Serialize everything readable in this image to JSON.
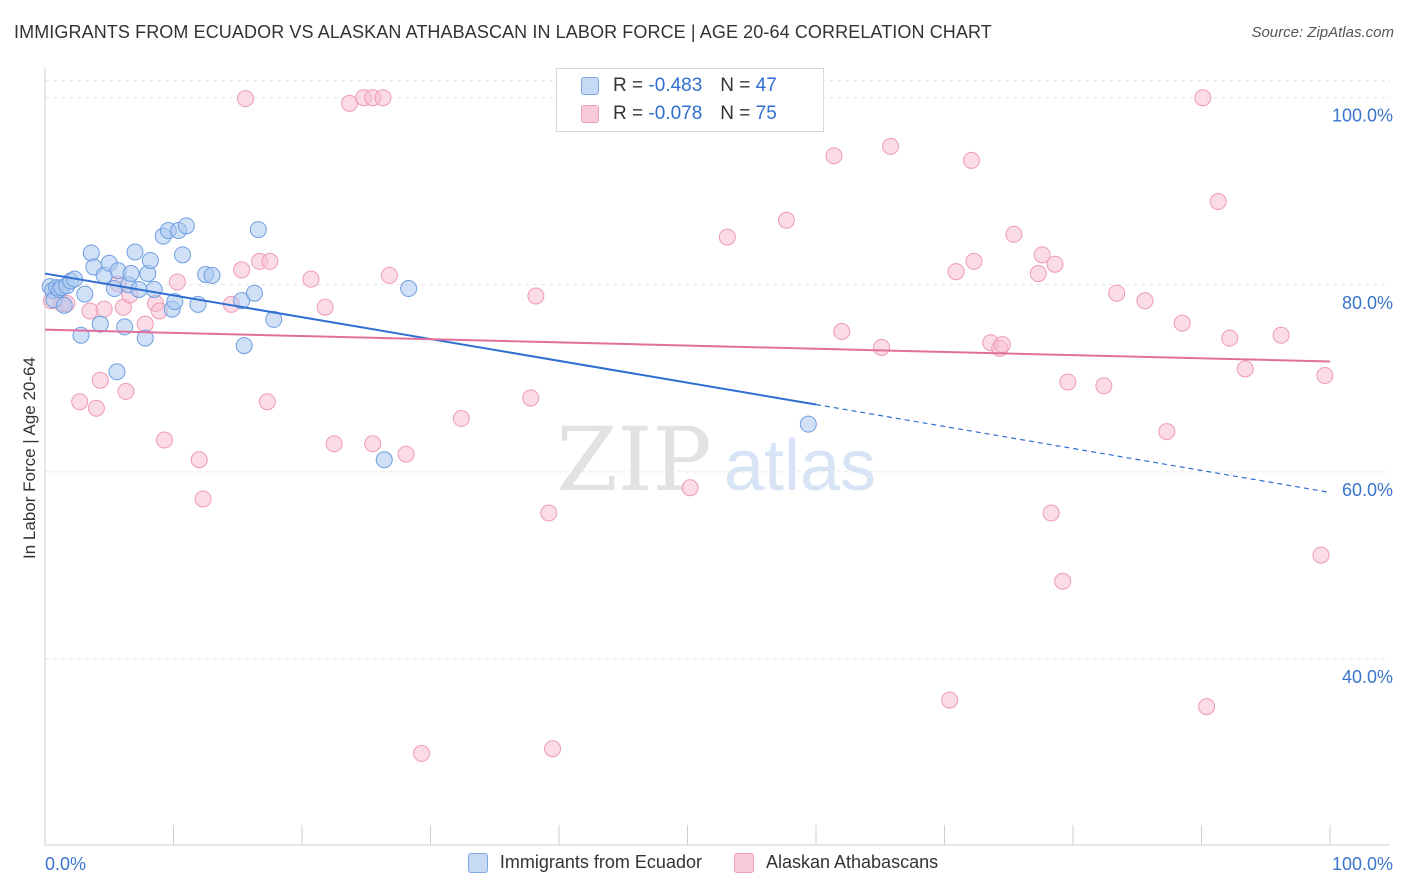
{
  "title": "IMMIGRANTS FROM ECUADOR VS ALASKAN ATHABASCAN IN LABOR FORCE | AGE 20-64 CORRELATION CHART",
  "source": "Source: ZipAtlas.com",
  "watermark": {
    "zip": "ZIP",
    "atlas": "atlas"
  },
  "legend": {
    "rows": [
      {
        "r_label": "R =",
        "r_value": "-0.483",
        "n_label": "N =",
        "n_value": "47"
      },
      {
        "r_label": "R =",
        "r_value": "-0.078",
        "n_label": "N =",
        "n_value": "75"
      }
    ]
  },
  "colors": {
    "blue_fill": "#a9c8f0",
    "blue_stroke": "#6f9ee0",
    "blue_line": "#2f6fd0",
    "pink_fill": "#f7bfd2",
    "pink_stroke": "#ee9ab6",
    "pink_line": "#e0709a",
    "tick_text": "#3a74cc",
    "grid": "#e3e3e3"
  },
  "chart_data": {
    "type": "scatter",
    "title": "IMMIGRANTS FROM ECUADOR VS ALASKAN ATHABASCAN IN LABOR FORCE | AGE 20-64 CORRELATION CHART",
    "xlabel": "",
    "ylabel": "In Labor Force | Age 20-64",
    "xlim": [
      0,
      100
    ],
    "ylim": [
      20,
      102
    ],
    "x_tick_labels": [
      "0.0%",
      "100.0%"
    ],
    "y_ticks": [
      40,
      60,
      80,
      100
    ],
    "y_tick_labels": [
      "40.0%",
      "60.0%",
      "80.0%",
      "100.0%"
    ],
    "series": [
      {
        "name": "Immigrants from Ecuador",
        "color": "blue",
        "r": -0.483,
        "n": 47,
        "trend": {
          "x0": 0,
          "y0": 81.2,
          "x1": 60,
          "y1": 67.2,
          "dash_to_x": 100,
          "dash_to_y": 57.8
        },
        "points": [
          [
            0.4,
            79.8
          ],
          [
            0.6,
            79.4
          ],
          [
            0.7,
            78.4
          ],
          [
            0.9,
            79.7
          ],
          [
            1.1,
            79.5
          ],
          [
            1.3,
            79.7
          ],
          [
            1.5,
            77.8
          ],
          [
            1.7,
            79.9
          ],
          [
            2.0,
            80.4
          ],
          [
            2.3,
            80.6
          ],
          [
            2.8,
            74.6
          ],
          [
            3.1,
            79.0
          ],
          [
            3.6,
            83.4
          ],
          [
            3.8,
            81.9
          ],
          [
            4.3,
            75.8
          ],
          [
            4.6,
            81.0
          ],
          [
            5.0,
            82.3
          ],
          [
            5.4,
            79.6
          ],
          [
            5.7,
            81.5
          ],
          [
            6.2,
            75.5
          ],
          [
            6.5,
            80.0
          ],
          [
            6.7,
            81.2
          ],
          [
            7.0,
            83.5
          ],
          [
            7.3,
            79.5
          ],
          [
            7.8,
            74.3
          ],
          [
            8.0,
            81.2
          ],
          [
            8.2,
            82.6
          ],
          [
            8.5,
            79.5
          ],
          [
            9.2,
            85.2
          ],
          [
            9.6,
            85.8
          ],
          [
            9.9,
            77.4
          ],
          [
            10.1,
            78.2
          ],
          [
            10.4,
            85.8
          ],
          [
            10.7,
            83.2
          ],
          [
            11.0,
            86.3
          ],
          [
            11.9,
            77.9
          ],
          [
            12.5,
            81.1
          ],
          [
            13.0,
            81.0
          ],
          [
            15.3,
            78.3
          ],
          [
            15.5,
            73.5
          ],
          [
            16.3,
            79.1
          ],
          [
            16.6,
            85.9
          ],
          [
            17.8,
            76.3
          ],
          [
            26.4,
            61.3
          ],
          [
            28.3,
            79.6
          ],
          [
            59.4,
            65.1
          ],
          [
            5.6,
            70.7
          ]
        ]
      },
      {
        "name": "Alaskan Athabascans",
        "color": "pink",
        "r": -0.078,
        "n": 75,
        "trend": {
          "x0": 0,
          "y0": 75.2,
          "x1": 100,
          "y1": 71.8
        },
        "points": [
          [
            0.5,
            78.3
          ],
          [
            1.3,
            78.0
          ],
          [
            1.7,
            78.0
          ],
          [
            2.7,
            67.5
          ],
          [
            3.5,
            77.2
          ],
          [
            4.0,
            66.8
          ],
          [
            4.3,
            69.8
          ],
          [
            4.6,
            77.4
          ],
          [
            5.7,
            80.1
          ],
          [
            6.1,
            77.6
          ],
          [
            6.3,
            68.6
          ],
          [
            6.6,
            78.9
          ],
          [
            7.8,
            75.8
          ],
          [
            8.6,
            78.0
          ],
          [
            8.9,
            77.2
          ],
          [
            9.3,
            63.4
          ],
          [
            10.3,
            80.3
          ],
          [
            12.0,
            61.3
          ],
          [
            12.3,
            57.1
          ],
          [
            14.5,
            77.9
          ],
          [
            15.3,
            81.6
          ],
          [
            15.6,
            99.9
          ],
          [
            16.7,
            82.5
          ],
          [
            17.3,
            67.5
          ],
          [
            17.5,
            82.5
          ],
          [
            20.7,
            80.6
          ],
          [
            21.8,
            77.6
          ],
          [
            22.5,
            63.0
          ],
          [
            23.7,
            99.4
          ],
          [
            24.8,
            100.0
          ],
          [
            25.5,
            63.0
          ],
          [
            25.5,
            100.0
          ],
          [
            26.3,
            100.0
          ],
          [
            26.8,
            81.0
          ],
          [
            28.1,
            61.9
          ],
          [
            29.3,
            29.9
          ],
          [
            32.4,
            65.7
          ],
          [
            37.8,
            67.9
          ],
          [
            38.2,
            78.8
          ],
          [
            39.2,
            55.6
          ],
          [
            39.5,
            30.4
          ],
          [
            50.2,
            58.3
          ],
          [
            53.1,
            85.1
          ],
          [
            57.7,
            86.9
          ],
          [
            61.4,
            93.8
          ],
          [
            62.0,
            75.0
          ],
          [
            65.1,
            73.3
          ],
          [
            65.8,
            94.8
          ],
          [
            70.4,
            35.6
          ],
          [
            70.9,
            81.4
          ],
          [
            72.1,
            93.3
          ],
          [
            72.3,
            82.5
          ],
          [
            73.6,
            73.8
          ],
          [
            74.3,
            73.2
          ],
          [
            74.5,
            73.6
          ],
          [
            75.4,
            85.4
          ],
          [
            77.3,
            81.2
          ],
          [
            77.6,
            83.2
          ],
          [
            78.3,
            55.6
          ],
          [
            78.6,
            82.2
          ],
          [
            79.2,
            48.3
          ],
          [
            79.6,
            69.6
          ],
          [
            82.4,
            69.2
          ],
          [
            83.4,
            79.1
          ],
          [
            85.6,
            78.3
          ],
          [
            87.3,
            64.3
          ],
          [
            88.5,
            75.9
          ],
          [
            90.1,
            100.0
          ],
          [
            90.4,
            34.9
          ],
          [
            91.3,
            88.9
          ],
          [
            92.2,
            74.3
          ],
          [
            93.4,
            71.0
          ],
          [
            96.2,
            74.6
          ],
          [
            99.3,
            51.1
          ],
          [
            99.6,
            70.3
          ]
        ]
      }
    ]
  }
}
